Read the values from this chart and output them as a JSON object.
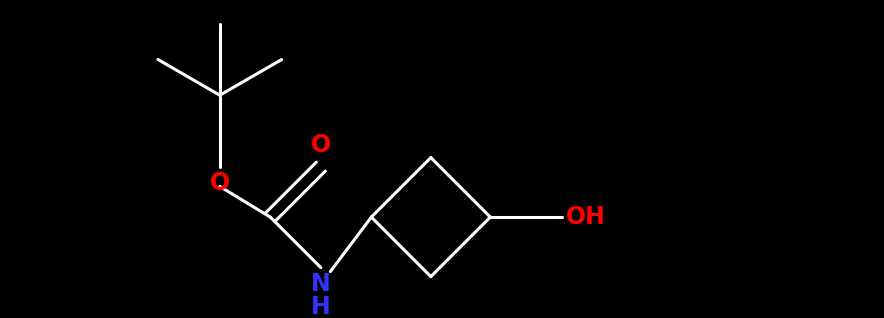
{
  "background_color": "#000000",
  "bond_color": "#ffffff",
  "oxygen_color": "#ff0000",
  "nitrogen_color": "#3333ff",
  "oh_color": "#ff0000",
  "line_width": 2.2,
  "figsize": [
    8.84,
    3.18
  ],
  "dpi": 100,
  "xlim": [
    0,
    10
  ],
  "ylim": [
    0,
    3.6
  ]
}
